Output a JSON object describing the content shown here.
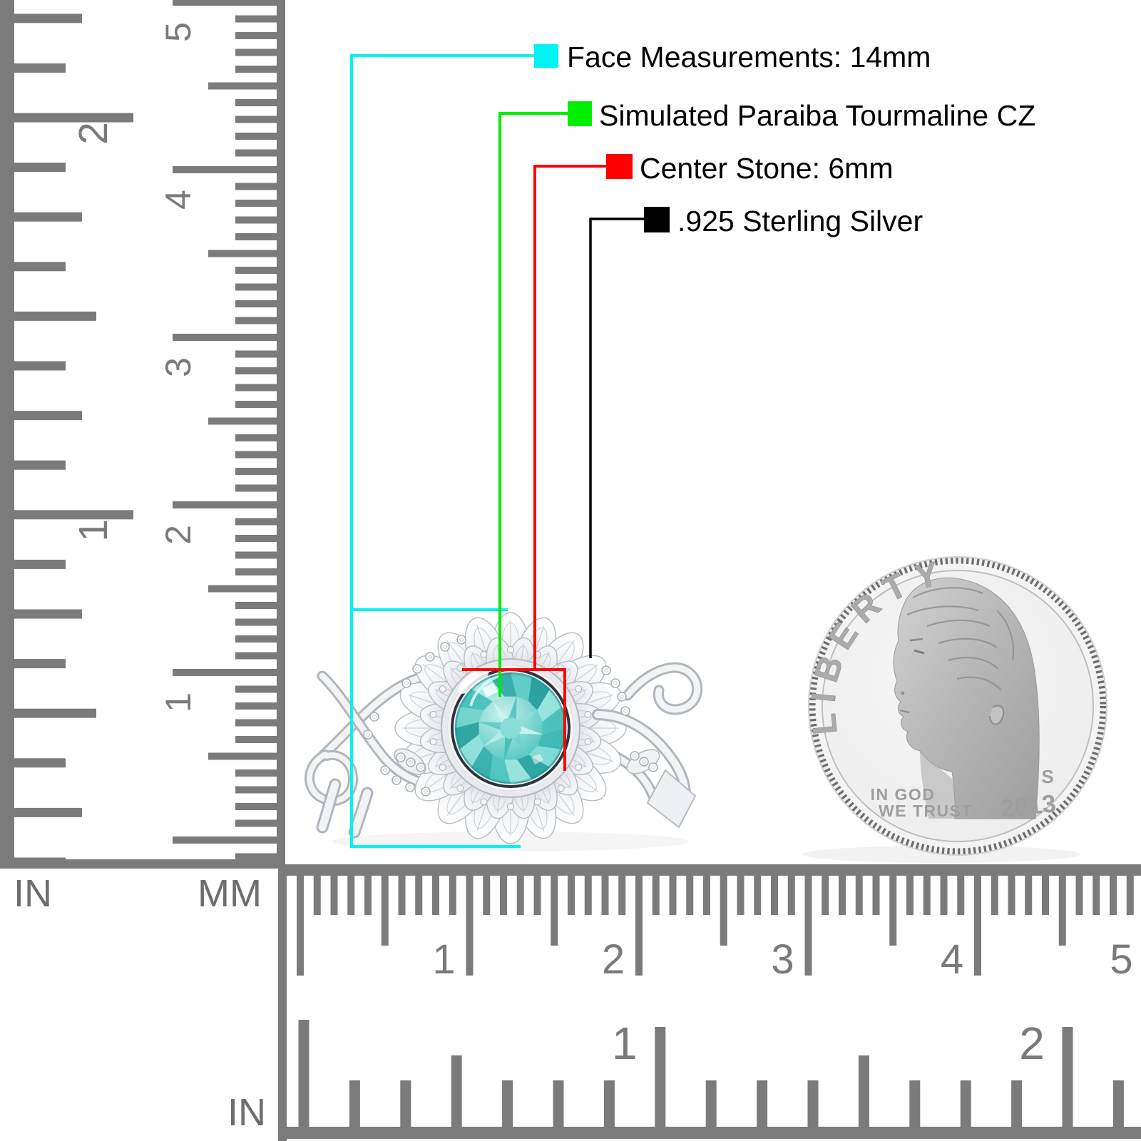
{
  "callouts": [
    {
      "color": "#00F2F2",
      "label": "Face Measurements: 14mm"
    },
    {
      "color": "#00EE00",
      "label": "Simulated Paraiba Tourmaline CZ"
    },
    {
      "color": "#FF0000",
      "label": "Center Stone: 6mm"
    },
    {
      "color": "#000000",
      "label": ".925 Sterling Silver"
    }
  ],
  "rulers": {
    "left_inch": {
      "unit": "IN",
      "numbers": [
        "1",
        "2"
      ]
    },
    "left_mm": {
      "unit": "MM",
      "numbers": [
        "1",
        "2",
        "3",
        "4",
        "5"
      ]
    },
    "bottom_mm": {
      "numbers": [
        "1",
        "2",
        "3",
        "4",
        "5"
      ]
    },
    "bottom_inch": {
      "unit": "IN",
      "numbers": [
        "1",
        "2"
      ]
    }
  },
  "coin": {
    "legend": "LIBERTY",
    "motto_line1": "IN GOD",
    "motto_line2": "WE TRUST",
    "year": "2013",
    "mint_mark": "S"
  },
  "ring": {
    "stone_color": "#4CC4C0",
    "metal_color": "#EDEFF2"
  }
}
